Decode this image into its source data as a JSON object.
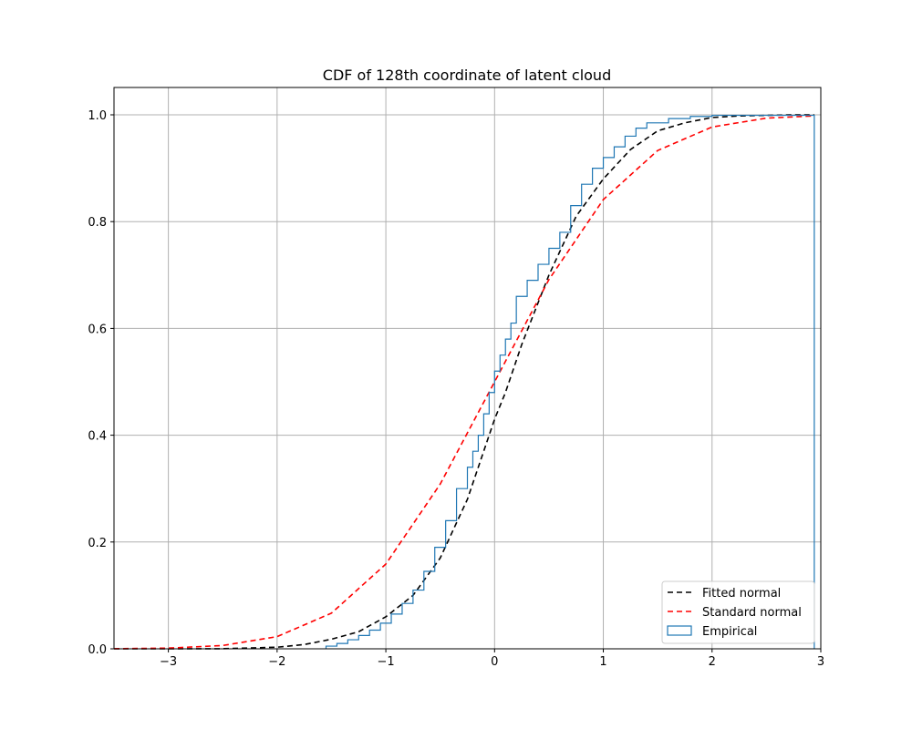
{
  "chart_data": {
    "type": "line",
    "title": "CDF of 128th coordinate of latent cloud",
    "xlabel": "",
    "ylabel": "",
    "xlim": [
      -3.5,
      3.0
    ],
    "ylim": [
      0.0,
      1.0
    ],
    "xticks": [
      -3,
      -2,
      -1,
      0,
      1,
      2,
      3
    ],
    "yticks": [
      0.0,
      0.2,
      0.4,
      0.6,
      0.8,
      1.0
    ],
    "xtick_labels": [
      "−3",
      "−2",
      "−1",
      "0",
      "1",
      "2",
      "3"
    ],
    "ytick_labels": [
      "0.0",
      "0.2",
      "0.4",
      "0.6",
      "0.8",
      "1.0"
    ],
    "grid": true,
    "legend_position": "lower-right",
    "series": [
      {
        "name": "Fitted normal",
        "style": "dashed",
        "color": "#000000",
        "x": [
          -3.5,
          -3.0,
          -2.5,
          -2.0,
          -1.75,
          -1.5,
          -1.25,
          -1.0,
          -0.75,
          -0.5,
          -0.25,
          0.0,
          0.1,
          0.25,
          0.5,
          0.75,
          1.0,
          1.25,
          1.5,
          1.75,
          2.0,
          2.25,
          2.5,
          2.75,
          2.94
        ],
        "y": [
          0.0,
          0.0,
          0.0002,
          0.003,
          0.008,
          0.018,
          0.032,
          0.06,
          0.1,
          0.17,
          0.28,
          0.43,
          0.48,
          0.57,
          0.7,
          0.81,
          0.88,
          0.935,
          0.97,
          0.985,
          0.995,
          0.998,
          0.999,
          1.0,
          1.0
        ]
      },
      {
        "name": "Standard normal",
        "style": "dashed",
        "color": "#ff0000",
        "x": [
          -3.5,
          -3.0,
          -2.5,
          -2.0,
          -1.5,
          -1.0,
          -0.5,
          0.0,
          0.5,
          1.0,
          1.5,
          2.0,
          2.5,
          2.94
        ],
        "y": [
          0.0002,
          0.0013,
          0.0062,
          0.0228,
          0.0668,
          0.1587,
          0.3085,
          0.5,
          0.6915,
          0.8413,
          0.9332,
          0.9772,
          0.9938,
          0.998
        ]
      },
      {
        "name": "Empirical",
        "style": "step",
        "color": "#1f77b4",
        "x": [
          -1.55,
          -1.45,
          -1.35,
          -1.25,
          -1.15,
          -1.05,
          -0.95,
          -0.85,
          -0.75,
          -0.65,
          -0.55,
          -0.45,
          -0.35,
          -0.25,
          -0.2,
          -0.15,
          -0.1,
          -0.05,
          0.0,
          0.05,
          0.1,
          0.15,
          0.2,
          0.3,
          0.4,
          0.5,
          0.6,
          0.7,
          0.8,
          0.9,
          1.0,
          1.1,
          1.2,
          1.3,
          1.4,
          1.6,
          1.8,
          2.0,
          2.94
        ],
        "y": [
          0.005,
          0.01,
          0.017,
          0.025,
          0.035,
          0.048,
          0.065,
          0.085,
          0.11,
          0.145,
          0.19,
          0.24,
          0.3,
          0.34,
          0.37,
          0.4,
          0.44,
          0.48,
          0.52,
          0.55,
          0.58,
          0.61,
          0.66,
          0.69,
          0.72,
          0.75,
          0.78,
          0.83,
          0.87,
          0.9,
          0.92,
          0.94,
          0.96,
          0.975,
          0.985,
          0.993,
          0.997,
          0.999,
          1.0
        ]
      }
    ]
  }
}
